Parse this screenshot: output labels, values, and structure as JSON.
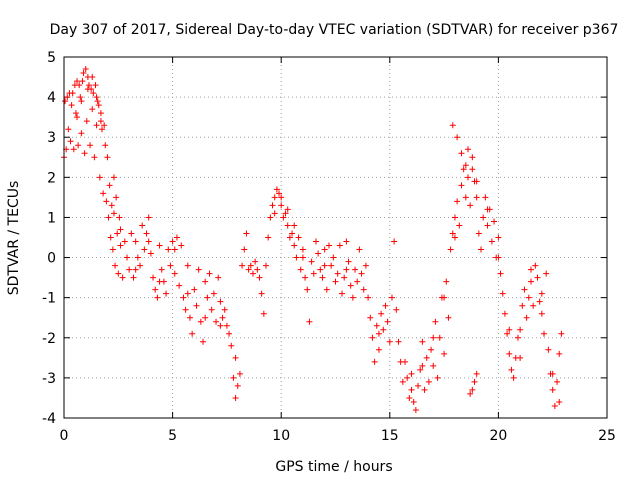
{
  "chart_data": {
    "type": "scatter",
    "title": "Day 307 of 2017, Sidereal Day-to-day VTEC variation (SDTVAR) for receiver p367",
    "xlabel": "GPS time / hours",
    "ylabel": "SDTVAR / TECUs",
    "xlim": [
      0,
      25
    ],
    "ylim": [
      -4,
      5
    ],
    "xticks": [
      "0",
      "5",
      "10",
      "15",
      "20",
      "25"
    ],
    "yticks": [
      "-4",
      "-3",
      "-2",
      "-1",
      "0",
      "1",
      "2",
      "3",
      "4",
      "5"
    ],
    "grid": true,
    "marker": "+",
    "color": "#ff0000",
    "series": [
      {
        "name": "p367",
        "points": [
          [
            0.0,
            2.5
          ],
          [
            0.05,
            3.9
          ],
          [
            0.1,
            2.7
          ],
          [
            0.15,
            4.0
          ],
          [
            0.2,
            3.2
          ],
          [
            0.25,
            4.1
          ],
          [
            0.3,
            2.9
          ],
          [
            0.35,
            3.8
          ],
          [
            0.4,
            4.1
          ],
          [
            0.45,
            2.7
          ],
          [
            0.5,
            4.3
          ],
          [
            0.55,
            3.6
          ],
          [
            0.6,
            4.4
          ],
          [
            0.65,
            2.8
          ],
          [
            0.7,
            4.3
          ],
          [
            0.75,
            4.0
          ],
          [
            0.8,
            3.1
          ],
          [
            0.85,
            4.4
          ],
          [
            0.9,
            4.6
          ],
          [
            0.95,
            2.6
          ],
          [
            1.0,
            4.7
          ],
          [
            1.05,
            3.4
          ],
          [
            1.1,
            4.5
          ],
          [
            1.15,
            4.3
          ],
          [
            1.2,
            2.8
          ],
          [
            1.25,
            4.2
          ],
          [
            1.3,
            3.7
          ],
          [
            1.35,
            4.1
          ],
          [
            1.4,
            2.5
          ],
          [
            1.45,
            4.3
          ],
          [
            1.5,
            3.3
          ],
          [
            1.55,
            3.9
          ],
          [
            1.6,
            3.8
          ],
          [
            1.65,
            2.0
          ],
          [
            1.7,
            3.6
          ],
          [
            1.75,
            3.2
          ],
          [
            1.8,
            1.6
          ],
          [
            1.85,
            3.3
          ],
          [
            1.9,
            2.8
          ],
          [
            1.95,
            1.4
          ],
          [
            2.0,
            2.5
          ],
          [
            2.05,
            1.0
          ],
          [
            2.1,
            1.8
          ],
          [
            2.15,
            0.5
          ],
          [
            2.2,
            1.3
          ],
          [
            2.25,
            0.2
          ],
          [
            2.3,
            2.0
          ],
          [
            2.35,
            -0.2
          ],
          [
            2.4,
            1.5
          ],
          [
            2.45,
            0.6
          ],
          [
            2.5,
            -0.4
          ],
          [
            2.55,
            1.0
          ],
          [
            2.6,
            0.3
          ],
          [
            2.7,
            -0.5
          ],
          [
            2.8,
            0.4
          ],
          [
            2.9,
            0.0
          ],
          [
            3.0,
            -0.3
          ],
          [
            3.1,
            0.6
          ],
          [
            3.2,
            -0.5
          ],
          [
            3.3,
            0.4
          ],
          [
            3.4,
            0.0
          ],
          [
            3.5,
            -0.2
          ],
          [
            3.6,
            0.8
          ],
          [
            3.7,
            0.2
          ],
          [
            3.8,
            0.6
          ],
          [
            3.9,
            1.0
          ],
          [
            4.0,
            0.1
          ],
          [
            4.1,
            -0.5
          ],
          [
            4.2,
            -0.8
          ],
          [
            4.3,
            -1.0
          ],
          [
            4.4,
            0.3
          ],
          [
            4.5,
            -0.3
          ],
          [
            4.6,
            -0.6
          ],
          [
            4.7,
            -0.9
          ],
          [
            4.8,
            0.2
          ],
          [
            4.9,
            -0.2
          ],
          [
            5.0,
            0.4
          ],
          [
            5.1,
            -0.4
          ],
          [
            5.2,
            0.5
          ],
          [
            5.3,
            -0.7
          ],
          [
            5.4,
            0.3
          ],
          [
            5.5,
            -1.0
          ],
          [
            5.6,
            -1.3
          ],
          [
            5.7,
            -0.2
          ],
          [
            5.8,
            -1.5
          ],
          [
            5.9,
            -1.9
          ],
          [
            6.0,
            -0.8
          ],
          [
            6.1,
            -1.2
          ],
          [
            6.2,
            -0.3
          ],
          [
            6.3,
            -1.6
          ],
          [
            6.4,
            -2.1
          ],
          [
            6.5,
            -0.6
          ],
          [
            6.6,
            -1.0
          ],
          [
            6.7,
            -0.4
          ],
          [
            6.8,
            -1.3
          ],
          [
            6.9,
            -0.9
          ],
          [
            7.0,
            -1.6
          ],
          [
            7.1,
            -0.5
          ],
          [
            7.2,
            -1.1
          ],
          [
            7.3,
            -1.5
          ],
          [
            7.4,
            -1.3
          ],
          [
            7.5,
            -1.7
          ],
          [
            7.6,
            -1.9
          ],
          [
            7.7,
            -2.2
          ],
          [
            7.8,
            -3.0
          ],
          [
            7.9,
            -3.5
          ],
          [
            8.0,
            -3.2
          ],
          [
            8.1,
            -2.9
          ],
          [
            8.2,
            -0.2
          ],
          [
            8.3,
            0.2
          ],
          [
            8.4,
            0.6
          ],
          [
            8.5,
            -0.3
          ],
          [
            8.6,
            -0.2
          ],
          [
            8.7,
            -0.4
          ],
          [
            8.8,
            -0.1
          ],
          [
            8.9,
            -0.3
          ],
          [
            9.0,
            -0.5
          ],
          [
            9.1,
            -0.9
          ],
          [
            9.2,
            -1.4
          ],
          [
            9.3,
            -0.2
          ],
          [
            9.4,
            0.5
          ],
          [
            9.5,
            1.0
          ],
          [
            9.6,
            1.3
          ],
          [
            9.7,
            1.5
          ],
          [
            9.8,
            1.7
          ],
          [
            9.9,
            1.6
          ],
          [
            10.0,
            1.3
          ],
          [
            10.1,
            1.0
          ],
          [
            10.2,
            1.1
          ],
          [
            10.3,
            0.8
          ],
          [
            10.4,
            0.5
          ],
          [
            10.5,
            0.6
          ],
          [
            10.6,
            0.3
          ],
          [
            10.7,
            0.0
          ],
          [
            10.8,
            0.5
          ],
          [
            10.9,
            -0.3
          ],
          [
            11.0,
            0.2
          ],
          [
            11.1,
            -0.5
          ],
          [
            11.2,
            -0.8
          ],
          [
            11.3,
            -1.6
          ],
          [
            11.4,
            -0.1
          ],
          [
            11.5,
            -0.4
          ],
          [
            11.6,
            0.4
          ],
          [
            11.7,
            0.1
          ],
          [
            11.8,
            -0.3
          ],
          [
            11.9,
            -0.5
          ],
          [
            12.0,
            0.2
          ],
          [
            12.1,
            -0.8
          ],
          [
            12.2,
            0.3
          ],
          [
            12.3,
            -0.2
          ],
          [
            12.4,
            0.0
          ],
          [
            12.5,
            -0.6
          ],
          [
            12.6,
            -0.4
          ],
          [
            12.7,
            0.3
          ],
          [
            12.8,
            -0.9
          ],
          [
            12.9,
            -0.5
          ],
          [
            13.0,
            0.4
          ],
          [
            13.1,
            -0.1
          ],
          [
            13.2,
            -0.7
          ],
          [
            13.3,
            -1.0
          ],
          [
            13.4,
            -0.3
          ],
          [
            13.5,
            -0.6
          ],
          [
            13.6,
            0.2
          ],
          [
            13.7,
            -0.4
          ],
          [
            13.8,
            -0.8
          ],
          [
            13.9,
            -0.2
          ],
          [
            14.0,
            -1.0
          ],
          [
            14.1,
            -1.5
          ],
          [
            14.2,
            -2.0
          ],
          [
            14.3,
            -2.6
          ],
          [
            14.4,
            -1.7
          ],
          [
            14.5,
            -2.3
          ],
          [
            14.6,
            -1.4
          ],
          [
            14.7,
            -1.8
          ],
          [
            14.8,
            -1.2
          ],
          [
            14.9,
            -1.6
          ],
          [
            15.0,
            -2.1
          ],
          [
            15.1,
            -1.0
          ],
          [
            15.2,
            0.4
          ],
          [
            15.3,
            -1.3
          ],
          [
            15.4,
            -2.1
          ],
          [
            15.5,
            -2.6
          ],
          [
            15.6,
            -3.1
          ],
          [
            15.7,
            -2.6
          ],
          [
            15.8,
            -3.0
          ],
          [
            15.9,
            -3.5
          ],
          [
            16.0,
            -2.9
          ],
          [
            16.1,
            -3.6
          ],
          [
            16.2,
            -3.8
          ],
          [
            16.3,
            -3.2
          ],
          [
            16.4,
            -2.8
          ],
          [
            16.5,
            -2.1
          ],
          [
            16.6,
            -3.3
          ],
          [
            16.7,
            -2.5
          ],
          [
            16.8,
            -3.1
          ],
          [
            16.9,
            -2.3
          ],
          [
            17.0,
            -2.7
          ],
          [
            17.1,
            -1.6
          ],
          [
            17.2,
            -3.0
          ],
          [
            17.3,
            -2.0
          ],
          [
            17.4,
            -1.0
          ],
          [
            17.5,
            -2.4
          ],
          [
            17.6,
            -0.6
          ],
          [
            17.7,
            -1.5
          ],
          [
            17.8,
            0.2
          ],
          [
            17.9,
            0.6
          ],
          [
            18.0,
            1.0
          ],
          [
            18.1,
            1.4
          ],
          [
            18.2,
            0.8
          ],
          [
            18.3,
            1.8
          ],
          [
            18.4,
            2.2
          ],
          [
            18.5,
            1.5
          ],
          [
            18.6,
            2.0
          ],
          [
            18.7,
            1.3
          ],
          [
            18.8,
            2.5
          ],
          [
            18.9,
            1.9
          ],
          [
            19.0,
            1.5
          ],
          [
            19.1,
            0.6
          ],
          [
            19.2,
            0.2
          ],
          [
            19.3,
            1.0
          ],
          [
            19.4,
            1.5
          ],
          [
            19.5,
            0.8
          ],
          [
            19.6,
            1.2
          ],
          [
            19.7,
            0.4
          ],
          [
            19.8,
            0.9
          ],
          [
            19.9,
            0.0
          ],
          [
            20.0,
            0.5
          ],
          [
            20.1,
            -0.4
          ],
          [
            20.2,
            -0.9
          ],
          [
            20.3,
            -1.4
          ],
          [
            20.4,
            -1.9
          ],
          [
            20.5,
            -2.4
          ],
          [
            20.6,
            -2.8
          ],
          [
            20.7,
            -3.0
          ],
          [
            20.8,
            -2.5
          ],
          [
            20.9,
            -2.0
          ],
          [
            21.0,
            -1.8
          ],
          [
            21.1,
            -1.2
          ],
          [
            21.2,
            -0.8
          ],
          [
            21.3,
            -1.5
          ],
          [
            21.4,
            -1.0
          ],
          [
            21.5,
            -0.3
          ],
          [
            21.6,
            -1.2
          ],
          [
            21.7,
            -0.2
          ],
          [
            21.8,
            -0.5
          ],
          [
            21.9,
            -1.1
          ],
          [
            22.0,
            -1.4
          ],
          [
            22.1,
            -1.9
          ],
          [
            22.2,
            -0.4
          ],
          [
            22.3,
            -2.3
          ],
          [
            22.4,
            -2.9
          ],
          [
            22.5,
            -3.3
          ],
          [
            22.6,
            -3.7
          ],
          [
            22.7,
            -3.1
          ],
          [
            22.8,
            -2.4
          ],
          [
            22.9,
            -1.9
          ],
          [
            1.1,
            4.2
          ],
          [
            1.3,
            4.5
          ],
          [
            1.5,
            4.0
          ],
          [
            0.6,
            3.5
          ],
          [
            0.8,
            3.9
          ],
          [
            1.7,
            3.4
          ],
          [
            2.3,
            1.1
          ],
          [
            2.6,
            0.7
          ],
          [
            3.3,
            -0.3
          ],
          [
            3.9,
            0.4
          ],
          [
            4.4,
            -0.6
          ],
          [
            5.1,
            0.2
          ],
          [
            5.7,
            -0.9
          ],
          [
            6.5,
            -1.5
          ],
          [
            7.2,
            -1.7
          ],
          [
            7.9,
            -2.5
          ],
          [
            9.7,
            1.1
          ],
          [
            10.0,
            1.5
          ],
          [
            10.3,
            1.2
          ],
          [
            10.6,
            0.8
          ],
          [
            11.0,
            0.0
          ],
          [
            12.0,
            -0.2
          ],
          [
            13.0,
            -0.3
          ],
          [
            14.5,
            -1.9
          ],
          [
            16.0,
            -3.3
          ],
          [
            16.5,
            -2.7
          ],
          [
            17.0,
            -2.0
          ],
          [
            17.5,
            -1.0
          ],
          [
            18.0,
            0.5
          ],
          [
            18.5,
            2.3
          ],
          [
            19.0,
            1.9
          ],
          [
            19.5,
            1.2
          ],
          [
            20.0,
            0.0
          ],
          [
            20.5,
            -1.8
          ],
          [
            21.0,
            -2.5
          ],
          [
            21.5,
            -0.6
          ],
          [
            22.0,
            -0.9
          ],
          [
            22.5,
            -2.9
          ],
          [
            22.8,
            -3.6
          ],
          [
            17.9,
            3.3
          ],
          [
            18.1,
            3.0
          ],
          [
            18.3,
            2.6
          ],
          [
            18.6,
            2.7
          ],
          [
            18.8,
            2.2
          ],
          [
            18.9,
            -3.1
          ],
          [
            19.0,
            -2.9
          ],
          [
            18.8,
            -3.3
          ],
          [
            18.7,
            -3.4
          ]
        ]
      }
    ]
  }
}
